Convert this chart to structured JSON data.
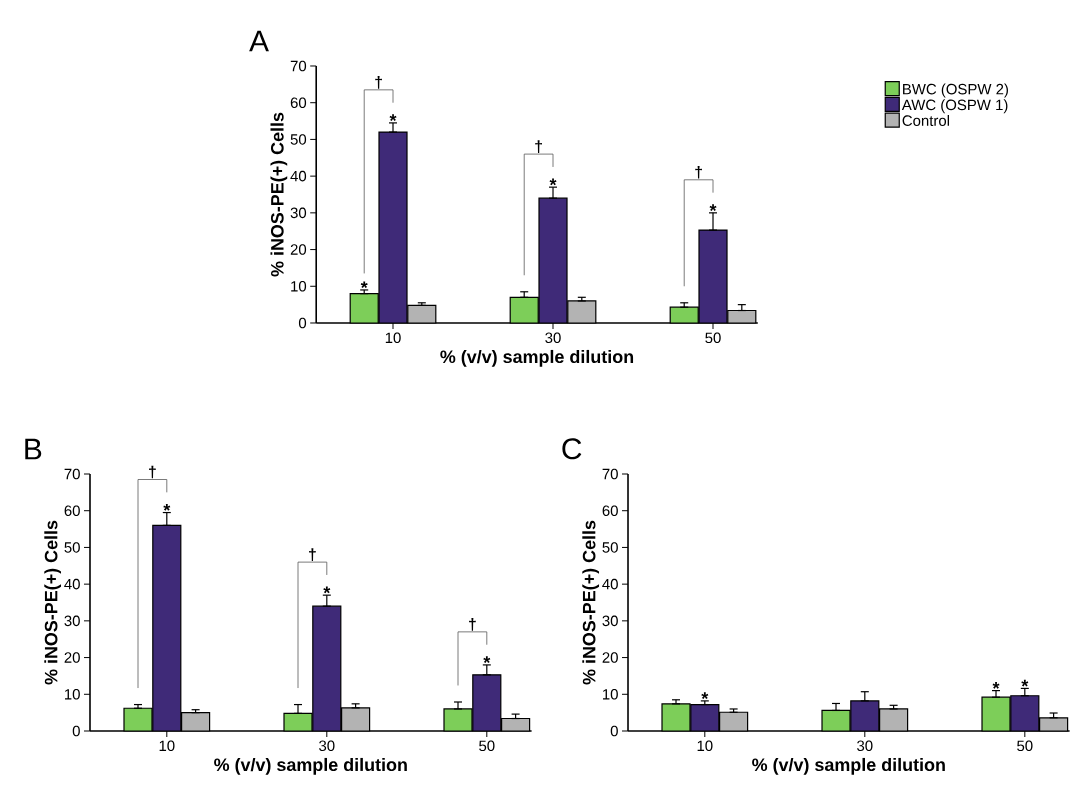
{
  "chart_data": [
    {
      "type": "bar",
      "title": "A",
      "xlabel": "% (v/v) sample dilution",
      "ylabel": "% iNOS-PE(+) Cells",
      "categories": [
        "10",
        "30",
        "50"
      ],
      "ylim": [
        0,
        70
      ],
      "yticks": [
        0,
        10,
        20,
        30,
        40,
        50,
        60,
        70
      ],
      "legend": "right",
      "series": [
        {
          "name": "BWC (OSPW 2)",
          "color": "#7dce59",
          "values": [
            8,
            7,
            4.3
          ],
          "errors": [
            [
              8,
              9
            ],
            [
              7,
              8.5
            ],
            [
              4.3,
              5.5
            ]
          ]
        },
        {
          "name": "AWC (OSPW 1)",
          "color": "#3f2a78",
          "values": [
            52,
            34,
            25.3
          ],
          "errors": [
            [
              52,
              54.5
            ],
            [
              34,
              37
            ],
            [
              25.3,
              30
            ]
          ]
        },
        {
          "name": "Control",
          "color": "#b3b3b3",
          "values": [
            4.8,
            6,
            3.4
          ],
          "errors": [
            [
              4.8,
              5.5
            ],
            [
              6,
              7
            ],
            [
              3.4,
              5
            ]
          ]
        }
      ],
      "annotations": [
        {
          "text": "*",
          "y": 9
        },
        {
          "text": "*",
          "x": "10",
          "y": 54.5
        },
        "†",
        {
          "text": "*",
          "x": "30",
          "y": 37
        },
        "†",
        {
          "text": "*",
          "x": "50",
          "y": 30
        },
        "†"
      ]
    },
    {
      "type": "bar",
      "title": "B",
      "xlabel": "% (v/v) sample dilution",
      "ylabel": "% iNOS-PE(+) Cells",
      "categories": [
        "10",
        "30",
        "50"
      ],
      "ylim": [
        0,
        70
      ],
      "yticks": [
        0,
        10,
        20,
        30,
        40,
        50,
        60,
        70
      ],
      "series": [
        {
          "color": "#7dce59",
          "values": [
            6.2,
            4.8,
            6
          ],
          "errors": [
            [
              6.2,
              7.2
            ],
            [
              4.8,
              7.2
            ],
            [
              6,
              7.9
            ]
          ]
        },
        {
          "color": "#3f2a78",
          "values": [
            56,
            34,
            15.3
          ],
          "errors": [
            [
              56,
              59.5
            ],
            [
              34,
              37
            ],
            [
              15.3,
              18
            ]
          ]
        },
        {
          "color": "#b3b3b3",
          "values": [
            5,
            6.3,
            3.4
          ],
          "errors": [
            [
              5,
              5.8
            ],
            [
              6.3,
              7.4
            ],
            [
              3.4,
              4.6
            ]
          ]
        }
      ],
      "annotations": [
        {
          "text": "*",
          "x": "10",
          "y": 59.5
        },
        "†",
        {
          "text": "*",
          "x": "30",
          "y": 37
        },
        "†",
        {
          "text": "*",
          "x": "50",
          "y": 18
        },
        "†"
      ]
    },
    {
      "type": "bar",
      "title": "C",
      "xlabel": "% (v/v) sample dilution",
      "ylabel": "% iNOS-PE(+) Cells",
      "categories": [
        "10",
        "30",
        "50"
      ],
      "ylim": [
        0,
        70
      ],
      "yticks": [
        0,
        10,
        20,
        30,
        40,
        50,
        60,
        70
      ],
      "series": [
        {
          "color": "#7dce59",
          "values": [
            7.4,
            5.6,
            9.2
          ],
          "errors": [
            [
              7.4,
              8.5
            ],
            [
              5.6,
              7.5
            ],
            [
              9.2,
              11
            ]
          ]
        },
        {
          "color": "#3f2a78",
          "values": [
            7.2,
            8.2,
            9.6
          ],
          "errors": [
            [
              7.2,
              8.2
            ],
            [
              8.2,
              10.7
            ],
            [
              9.6,
              11.6
            ]
          ]
        },
        {
          "color": "#b3b3b3",
          "values": [
            5.1,
            6,
            3.6
          ],
          "errors": [
            [
              5.1,
              6
            ],
            [
              6,
              7
            ],
            [
              3.6,
              4.9
            ]
          ]
        }
      ],
      "annotations": [
        {
          "text": "*",
          "x": "10",
          "y": 8.2
        },
        {
          "text": "*",
          "x": "50",
          "y": 11
        },
        {
          "text": "*",
          "x": "50",
          "y": 11.6
        }
      ]
    }
  ]
}
